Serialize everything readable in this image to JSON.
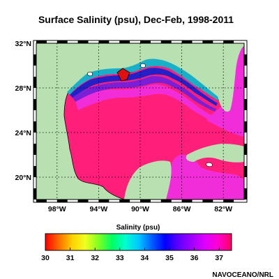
{
  "title": "Surface Salinity (psu), Dec-Feb, 1998-2011",
  "map": {
    "lon_range": [
      -100,
      -80
    ],
    "lat_range": [
      18,
      32
    ],
    "lat_ticks": [
      "32°N",
      "28°N",
      "24°N",
      "20°N"
    ],
    "lon_ticks": [
      "98°W",
      "94°W",
      "90°W",
      "86°W",
      "82°W"
    ],
    "grid": true,
    "colors": {
      "land": "#b8e0b0",
      "ocean_high": "#ff1f7a",
      "ocean_37": "#f02dd8",
      "shelf_35_36": "#7a1fd8",
      "shelf_34_35": "#2420c8",
      "shelf_low": "#18b0c8",
      "brackish": "#e01010"
    }
  },
  "colorbar": {
    "title": "Salinity (psu)",
    "min": 30,
    "max": 37.5,
    "ticks": [
      "30",
      "31",
      "32",
      "33",
      "34",
      "35",
      "36",
      "37"
    ],
    "colors": [
      "#ff0000",
      "#ff6a00",
      "#ffd000",
      "#f0ff20",
      "#80ff20",
      "#00ff60",
      "#00ffd0",
      "#00c8ff",
      "#0060ff",
      "#0000ff",
      "#6000ff",
      "#a000ff",
      "#e000ff",
      "#ff00d0",
      "#ff0060"
    ]
  },
  "credit": "NAVOCEANO/NRL"
}
